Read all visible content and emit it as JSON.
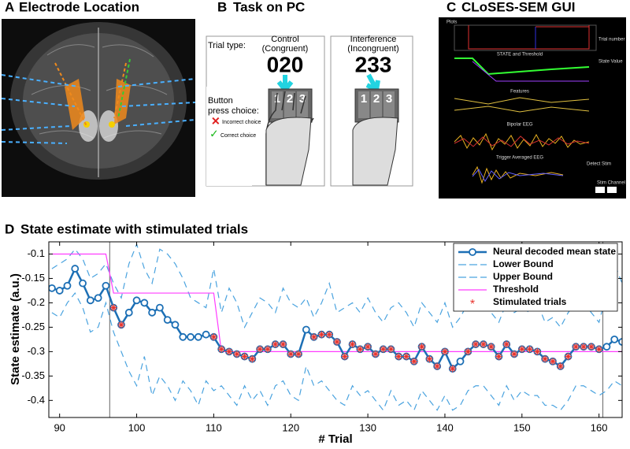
{
  "panels": [
    {
      "label": "A",
      "title": "Electrode Location"
    },
    {
      "label": "B",
      "title": "Task on PC"
    },
    {
      "label": "C",
      "title": "CLoSES-SEM GUI"
    }
  ],
  "task": {
    "trial_type": "Trial type:",
    "control": [
      "Control",
      "(Congruent)"
    ],
    "control_number": "020",
    "interference": [
      "Interference",
      "(Incongruent)"
    ],
    "interference_number": "233",
    "button": [
      "Button",
      "press choice:"
    ],
    "incorrect": "Incorrect choice",
    "correct": "Correct choice",
    "keys": [
      "1",
      "2",
      "3"
    ]
  },
  "gui": {
    "plots": "Plots",
    "state": "STATE and Threshold",
    "features": "Features",
    "bipolar": "Bipolar EEG",
    "trigger": "Trigger Averaged EEG",
    "state_value": "State Value",
    "trial_number": "Trial number",
    "detect_stim": "Detect Stim",
    "stim_channel": "Stim Channel"
  },
  "chart_data": {
    "type": "line",
    "label": "D",
    "title": "State estimate with stimulated trials",
    "xlabel": "# Trial",
    "ylabel": "State estimate (a.u.)",
    "x": [
      89,
      90,
      91,
      92,
      93,
      94,
      95,
      96,
      97,
      98,
      99,
      100,
      101,
      102,
      103,
      104,
      105,
      106,
      107,
      108,
      109,
      110,
      111,
      112,
      113,
      114,
      115,
      116,
      117,
      118,
      119,
      120,
      121,
      122,
      123,
      124,
      125,
      126,
      127,
      128,
      129,
      130,
      131,
      132,
      133,
      134,
      135,
      136,
      137,
      138,
      139,
      140,
      141,
      142,
      143,
      144,
      145,
      146,
      147,
      148,
      149,
      150,
      151,
      152,
      153,
      154,
      155,
      156,
      157,
      158,
      159,
      160,
      161,
      162,
      163
    ],
    "series": [
      {
        "name": "Neural decoded mean state",
        "color": "#1c6fb5",
        "style": "solid",
        "marker": "circle",
        "values": [
          -0.17,
          -0.175,
          -0.165,
          -0.13,
          -0.16,
          -0.195,
          -0.19,
          -0.165,
          -0.21,
          -0.245,
          -0.22,
          -0.195,
          -0.2,
          -0.22,
          -0.21,
          -0.235,
          -0.245,
          -0.27,
          -0.27,
          -0.27,
          -0.265,
          -0.27,
          -0.295,
          -0.3,
          -0.305,
          -0.31,
          -0.315,
          -0.295,
          -0.295,
          -0.285,
          -0.285,
          -0.305,
          -0.305,
          -0.255,
          -0.27,
          -0.265,
          -0.265,
          -0.28,
          -0.31,
          -0.285,
          -0.295,
          -0.29,
          -0.305,
          -0.295,
          -0.295,
          -0.31,
          -0.31,
          -0.32,
          -0.29,
          -0.315,
          -0.33,
          -0.3,
          -0.335,
          -0.32,
          -0.3,
          -0.285,
          -0.285,
          -0.29,
          -0.31,
          -0.285,
          -0.305,
          -0.295,
          -0.295,
          -0.3,
          -0.315,
          -0.32,
          -0.33,
          -0.31,
          -0.29,
          -0.29,
          -0.29,
          -0.295,
          -0.29,
          -0.275,
          -0.28
        ]
      },
      {
        "name": "Lower Bound",
        "color": "#4aa3df",
        "style": "dashed",
        "values": [
          -0.22,
          -0.23,
          -0.2,
          -0.18,
          -0.21,
          -0.26,
          -0.25,
          -0.2,
          -0.26,
          -0.3,
          -0.34,
          -0.37,
          -0.31,
          -0.39,
          -0.35,
          -0.37,
          -0.4,
          -0.36,
          -0.38,
          -0.41,
          -0.36,
          -0.38,
          -0.37,
          -0.39,
          -0.41,
          -0.37,
          -0.4,
          -0.38,
          -0.41,
          -0.37,
          -0.36,
          -0.39,
          -0.4,
          -0.33,
          -0.37,
          -0.36,
          -0.38,
          -0.4,
          -0.41,
          -0.37,
          -0.39,
          -0.38,
          -0.4,
          -0.42,
          -0.38,
          -0.41,
          -0.4,
          -0.42,
          -0.38,
          -0.4,
          -0.42,
          -0.39,
          -0.42,
          -0.41,
          -0.38,
          -0.37,
          -0.37,
          -0.39,
          -0.41,
          -0.37,
          -0.4,
          -0.38,
          -0.39,
          -0.39,
          -0.41,
          -0.41,
          -0.42,
          -0.4,
          -0.37,
          -0.37,
          -0.38,
          -0.39,
          -0.38,
          -0.36,
          -0.37
        ]
      },
      {
        "name": "Upper Bound",
        "color": "#4aa3df",
        "style": "dashed",
        "values": [
          -0.13,
          -0.12,
          -0.11,
          -0.09,
          -0.11,
          -0.15,
          -0.14,
          -0.12,
          -0.16,
          -0.19,
          -0.12,
          -0.08,
          -0.13,
          -0.16,
          -0.09,
          -0.1,
          -0.12,
          -0.15,
          -0.19,
          -0.2,
          -0.21,
          -0.13,
          -0.22,
          -0.17,
          -0.2,
          -0.25,
          -0.22,
          -0.19,
          -0.2,
          -0.22,
          -0.17,
          -0.2,
          -0.21,
          -0.19,
          -0.23,
          -0.2,
          -0.16,
          -0.22,
          -0.21,
          -0.2,
          -0.22,
          -0.19,
          -0.22,
          -0.24,
          -0.21,
          -0.2,
          -0.22,
          -0.25,
          -0.2,
          -0.22,
          -0.24,
          -0.2,
          -0.25,
          -0.23,
          -0.2,
          -0.21,
          -0.2,
          -0.22,
          -0.24,
          -0.2,
          -0.22,
          -0.21,
          -0.22,
          -0.2,
          -0.24,
          -0.23,
          -0.25,
          -0.22,
          -0.2,
          -0.2,
          -0.22,
          -0.24,
          -0.18,
          -0.12,
          -0.16
        ]
      },
      {
        "name": "Threshold",
        "color": "#ff3cff",
        "style": "solid",
        "values": [
          -0.1,
          -0.1,
          -0.1,
          -0.1,
          -0.1,
          -0.1,
          -0.1,
          -0.1,
          -0.18,
          -0.18,
          -0.18,
          -0.18,
          -0.18,
          -0.18,
          -0.18,
          -0.18,
          -0.18,
          -0.18,
          -0.18,
          -0.18,
          -0.18,
          -0.18,
          -0.3,
          -0.3,
          -0.3,
          -0.3,
          -0.3,
          -0.3,
          -0.3,
          -0.3,
          -0.3,
          -0.3,
          -0.3,
          -0.3,
          -0.3,
          -0.3,
          -0.3,
          -0.3,
          -0.3,
          -0.3,
          -0.3,
          -0.3,
          -0.3,
          -0.3,
          -0.3,
          -0.3,
          -0.3,
          -0.3,
          -0.3,
          -0.3,
          -0.3,
          -0.3,
          -0.3,
          -0.3,
          -0.3,
          -0.3,
          -0.3,
          -0.3,
          -0.3,
          -0.3,
          -0.3,
          -0.3,
          -0.3,
          -0.3,
          -0.3,
          -0.3,
          -0.3,
          -0.3,
          -0.3,
          -0.3,
          -0.3,
          -0.3,
          -0.3,
          -0.3,
          -0.3
        ]
      },
      {
        "name": "Stimulated trials",
        "color": "#e8352f",
        "style": "none",
        "marker": "asterisk",
        "x": [
          97,
          98,
          110,
          111,
          112,
          113,
          114,
          115,
          116,
          117,
          118,
          119,
          120,
          121,
          123,
          124,
          125,
          126,
          127,
          128,
          129,
          130,
          131,
          132,
          133,
          134,
          135,
          136,
          137,
          138,
          139,
          140,
          141,
          143,
          144,
          145,
          146,
          147,
          148,
          149,
          150,
          151,
          152,
          153,
          154,
          155,
          156,
          157,
          158,
          159,
          160
        ],
        "values": [
          -0.21,
          -0.245,
          -0.27,
          -0.295,
          -0.3,
          -0.305,
          -0.31,
          -0.315,
          -0.295,
          -0.295,
          -0.285,
          -0.285,
          -0.305,
          -0.305,
          -0.27,
          -0.265,
          -0.265,
          -0.28,
          -0.31,
          -0.285,
          -0.295,
          -0.29,
          -0.305,
          -0.295,
          -0.295,
          -0.31,
          -0.31,
          -0.32,
          -0.29,
          -0.315,
          -0.33,
          -0.3,
          -0.335,
          -0.3,
          -0.285,
          -0.285,
          -0.29,
          -0.31,
          -0.285,
          -0.305,
          -0.295,
          -0.295,
          -0.3,
          -0.315,
          -0.32,
          -0.33,
          -0.31,
          -0.29,
          -0.29,
          -0.29,
          -0.295
        ]
      }
    ],
    "vlines": [
      96.5,
      160.5
    ],
    "vline_color": "#666666",
    "xlim": [
      88.6,
      163
    ],
    "ylim": [
      -0.435,
      -0.075
    ],
    "xticks": [
      90,
      100,
      110,
      120,
      130,
      140,
      150,
      160
    ],
    "yticks": [
      -0.4,
      -0.35,
      -0.3,
      -0.25,
      -0.2,
      -0.15,
      -0.1
    ],
    "grid": false,
    "legend": "upper right"
  }
}
